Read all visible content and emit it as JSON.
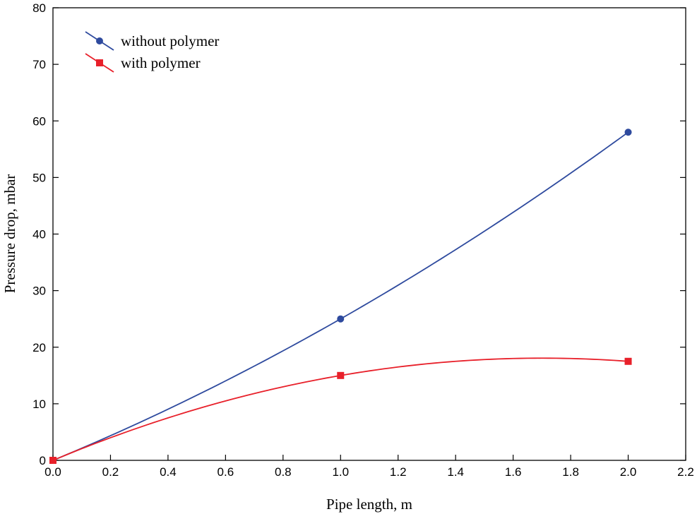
{
  "chart_data": {
    "type": "line",
    "title": "",
    "xlabel": "Pipe length, m",
    "ylabel": "Pressure drop, mbar",
    "xlim": [
      0.0,
      2.2
    ],
    "ylim": [
      0,
      80
    ],
    "x_ticks": [
      0.0,
      0.2,
      0.4,
      0.6,
      0.8,
      1.0,
      1.2,
      1.4,
      1.6,
      1.8,
      2.0,
      2.2
    ],
    "x_tick_labels": [
      "0.0",
      "0.2",
      "0.4",
      "0.6",
      "0.8",
      "1.0",
      "1.2",
      "1.4",
      "1.6",
      "1.8",
      "2.0",
      "2.2"
    ],
    "y_ticks": [
      0,
      10,
      20,
      30,
      40,
      50,
      60,
      70,
      80
    ],
    "y_tick_labels": [
      "0",
      "10",
      "20",
      "30",
      "40",
      "50",
      "60",
      "70",
      "80"
    ],
    "grid": false,
    "legend_position": "top-left",
    "series": [
      {
        "name": "without polymer",
        "color": "#2e4a9e",
        "marker": "circle",
        "x": [
          0.0,
          1.0,
          2.0
        ],
        "values": [
          0,
          25,
          58
        ]
      },
      {
        "name": "with polymer",
        "color": "#e8202a",
        "marker": "square",
        "x": [
          0.0,
          1.0,
          2.0
        ],
        "values": [
          0,
          15,
          17.5
        ]
      }
    ]
  }
}
